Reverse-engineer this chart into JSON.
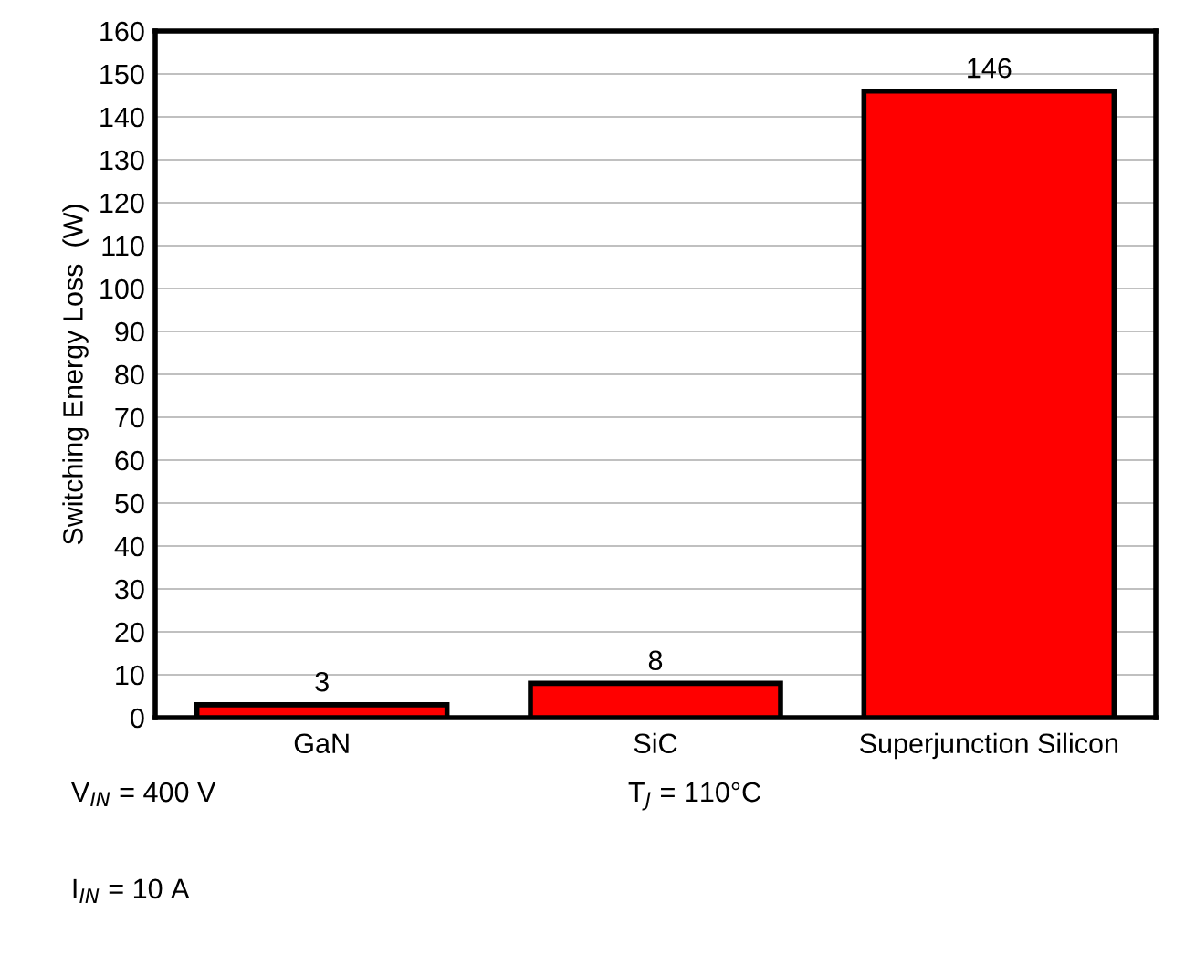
{
  "chart_data": {
    "type": "bar",
    "ylabel": "Switching Energy Loss  (W)",
    "categories": [
      "GaN",
      "SiC",
      "Superjunction Silicon"
    ],
    "values": [
      3,
      8,
      146
    ],
    "color": "#ff0000",
    "data_labels": true,
    "ylim": [
      0,
      160
    ],
    "yticks": [
      0,
      10,
      20,
      30,
      40,
      50,
      60,
      70,
      80,
      90,
      100,
      110,
      120,
      130,
      140,
      150,
      160
    ],
    "grid": "y",
    "legend": false,
    "annotations": [
      "V$_{IN}$ = 400 V",
      "T$_{J}$ = 110°C",
      "I$_{IN}$ = 10 A"
    ]
  }
}
